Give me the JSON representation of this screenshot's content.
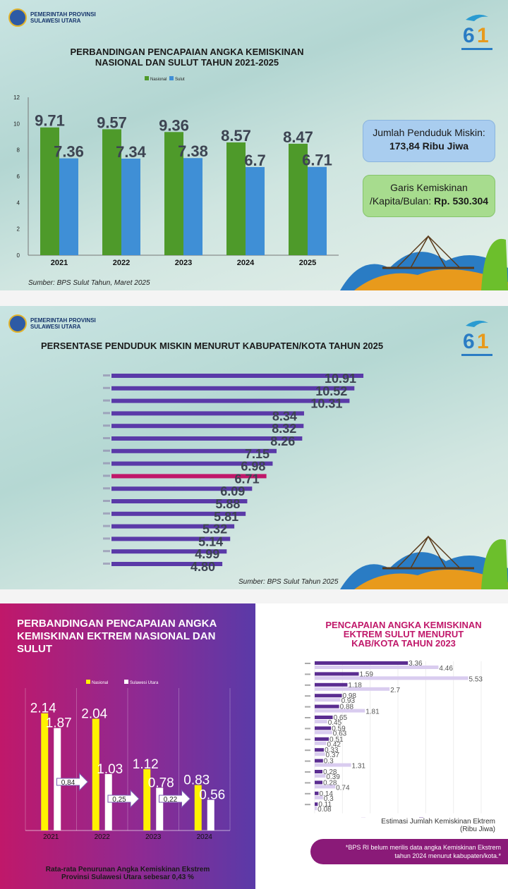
{
  "header": {
    "gov_line1": "PEMERINTAH PROVINSI",
    "gov_line2": "SULAWESI UTARA"
  },
  "panel1": {
    "title_line1": "PERBANDINGAN PENCAPAIAN ANGKA KEMISKINAN",
    "title_line2": "NASIONAL DAN SULUT TAHUN 2021-2025",
    "source": "Sumber: BPS Sulut Tahun, Maret 2025",
    "box1_line1": "Jumlah Penduduk Miskin:",
    "box1_line2": "173,84 Ribu Jiwa",
    "box2_line1": "Garis Kemiskinan",
    "box2_line2a": "/Kapita/Bulan: ",
    "box2_line2b": "Rp. 530.304"
  },
  "panel2": {
    "title": "PERSENTASE PENDUDUK MISKIN MENURUT KABUPATEN/KOTA TAHUN 2025",
    "source": "Sumber: BPS Sulut Tahun 2025"
  },
  "panel3": {
    "title": "PERBANDINGAN PENCAPAIAN ANGKA KEMISKINAN EKTREM NASIONAL DAN SULUT",
    "footer_line1": "Rata-rata Penurunan Angka Kemiskinan Ekstrem",
    "footer_line2": "Provinsi Sulawesi Utara sebesar 0,43 %"
  },
  "panel4": {
    "title_line1": "PENCAPAIAN ANGKA KEMISKINAN",
    "title_line2": "EKTREM SULUT MENURUT",
    "title_line3": "KAB/KOTA TAHUN 2023",
    "caption_line1": "Estimasi Jumlah Kemiskinan Ektrem",
    "caption_line2": "(Ribu Jiwa)",
    "note_line1": "*BPS RI belum merilis data angka Kemiskinan Ekstrem",
    "note_line2": "tahun 2024 menurut kabupaten/kota.*"
  },
  "colors": {
    "nasional_green": "#4e9a2a",
    "sulut_blue": "#3f8fd6",
    "bar_purple": "#5a3aa8",
    "bar_highlight": "#c0186a",
    "extreme_yellow": "#fff200",
    "light_purple": "#d9ccef",
    "dark_purple": "#5b2d91"
  },
  "chart_data": [
    {
      "type": "bar",
      "categories": [
        "2021",
        "2022",
        "2023",
        "2024",
        "2025"
      ],
      "series": [
        {
          "name": "Nasional",
          "values": [
            9.71,
            9.57,
            9.36,
            8.57,
            8.47
          ],
          "labels": [
            "9.71",
            "9.57",
            "9.36",
            "8.57",
            "8.47"
          ]
        },
        {
          "name": "Sulut",
          "values": [
            7.36,
            7.34,
            7.38,
            6.7,
            6.71
          ],
          "labels": [
            "7.36",
            "7.34",
            "7.38",
            "6.7",
            "6.71"
          ]
        }
      ],
      "ylim": [
        0,
        12
      ],
      "yticks": [
        "0",
        "2",
        "4",
        "6",
        "8",
        "10",
        "12"
      ],
      "legend_position": "top-center"
    },
    {
      "type": "bar",
      "orientation": "horizontal",
      "values": [
        10.91,
        10.52,
        10.31,
        8.34,
        8.32,
        8.26,
        7.15,
        6.98,
        6.71,
        6.09,
        5.88,
        5.81,
        5.32,
        5.14,
        4.99,
        4.8
      ],
      "labels": [
        "10.91",
        "10.52",
        "10.31",
        "8.34",
        "8.32",
        "8.26",
        "7.15",
        "6.98",
        "6.71",
        "6.09",
        "5.88",
        "5.81",
        "5.32",
        "5.14",
        "4.99",
        "4.80"
      ],
      "highlight_index": 8
    },
    {
      "type": "bar",
      "categories": [
        "2021",
        "2022",
        "2023",
        "2024"
      ],
      "series": [
        {
          "name": "Nasional",
          "values": [
            2.14,
            2.04,
            1.12,
            0.83
          ],
          "labels": [
            "2.14",
            "2.04",
            "1.12",
            "0.83"
          ]
        },
        {
          "name": "Sulawesi Utara",
          "values": [
            1.87,
            1.03,
            0.78,
            0.56
          ],
          "labels": [
            "1.87",
            "1.03",
            "0.78",
            "0.56"
          ]
        }
      ],
      "annotations": [
        "0,84",
        "0,25",
        "0,22"
      ],
      "ylim": [
        0,
        2.6
      ],
      "legend_position": "top-center"
    },
    {
      "type": "bar",
      "orientation": "horizontal",
      "series": [
        {
          "values": [
            3.36,
            1.59,
            1.18,
            0.98,
            0.88,
            0.65,
            0.59,
            0.51,
            0.33,
            0.3,
            0.28,
            0.28,
            0.14,
            0.11
          ],
          "labels": [
            "3.36",
            "1.59",
            "1.18",
            "0.98",
            "0.88",
            "0.65",
            "0.59",
            "0.51",
            "0.33",
            "0.3",
            "0.28",
            "0.28",
            "0.14",
            "0.11"
          ]
        },
        {
          "values": [
            4.46,
            5.53,
            2.7,
            0.93,
            1.81,
            0.45,
            0.63,
            0.42,
            0.37,
            1.31,
            0.39,
            0.74,
            0.3,
            0.08
          ],
          "labels": [
            "4.46",
            "5.53",
            "2.7",
            "0.93",
            "1.81",
            "0.45",
            "0.63",
            "0.42",
            "0.37",
            "1.31",
            "0.39",
            "0.74",
            "0.3",
            "0.08"
          ]
        }
      ],
      "xlim": [
        0,
        6
      ]
    }
  ]
}
